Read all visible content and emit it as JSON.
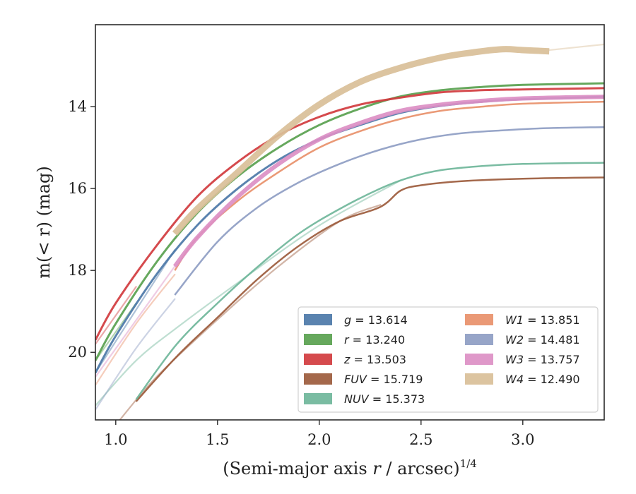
{
  "chart_data": {
    "type": "line",
    "xlabel": "(Semi-major axis ",
    "xlabel_var": "r",
    "xlabel_tail": " / arcsec)",
    "xlabel_sup": "1/4",
    "ylabel_pre": "m(< r) (mag)",
    "xlim": [
      0.9,
      3.4
    ],
    "ylim": [
      21.65,
      12.0
    ],
    "y_inverted": true,
    "xticks": [
      1.0,
      1.5,
      2.0,
      2.5,
      3.0
    ],
    "xtick_labels": [
      "1.0",
      "1.5",
      "2.0",
      "2.5",
      "3.0"
    ],
    "yticks": [
      14,
      16,
      18,
      20
    ],
    "ytick_labels": [
      "14",
      "16",
      "18",
      "20"
    ],
    "grid": false,
    "legend_placement": "lower-right",
    "series": [
      {
        "name": "g",
        "label": "g = 13.614",
        "color": "#4c78a8",
        "width": 3,
        "faint": [
          [
            0.9,
            20.5
          ],
          [
            1.29,
            17.5
          ]
        ],
        "points": [
          [
            0.9,
            20.5
          ],
          [
            1.0,
            19.6
          ],
          [
            1.2,
            18.1
          ],
          [
            1.4,
            16.9
          ],
          [
            1.6,
            16.0
          ],
          [
            1.8,
            15.3
          ],
          [
            2.0,
            14.8
          ],
          [
            2.2,
            14.45
          ],
          [
            2.4,
            14.15
          ],
          [
            2.6,
            13.98
          ],
          [
            2.8,
            13.88
          ],
          [
            3.0,
            13.82
          ],
          [
            3.4,
            13.76
          ]
        ]
      },
      {
        "name": "r",
        "label": "r = 13.240",
        "color": "#59a14f",
        "width": 3,
        "faint": [
          [
            0.9,
            20.2
          ],
          [
            1.1,
            18.8
          ]
        ],
        "points": [
          [
            0.9,
            20.2
          ],
          [
            1.0,
            19.3
          ],
          [
            1.2,
            17.8
          ],
          [
            1.4,
            16.6
          ],
          [
            1.6,
            15.7
          ],
          [
            1.8,
            15.0
          ],
          [
            2.0,
            14.45
          ],
          [
            2.2,
            14.05
          ],
          [
            2.4,
            13.75
          ],
          [
            2.6,
            13.6
          ],
          [
            2.8,
            13.52
          ],
          [
            3.0,
            13.47
          ],
          [
            3.4,
            13.43
          ]
        ]
      },
      {
        "name": "z",
        "label": "z = 13.503",
        "color": "#d13b3e",
        "width": 3,
        "faint": [
          [
            0.9,
            19.8
          ],
          [
            1.1,
            18.4
          ]
        ],
        "points": [
          [
            0.9,
            19.7
          ],
          [
            1.0,
            18.8
          ],
          [
            1.2,
            17.4
          ],
          [
            1.4,
            16.2
          ],
          [
            1.6,
            15.35
          ],
          [
            1.8,
            14.7
          ],
          [
            2.0,
            14.25
          ],
          [
            2.2,
            13.95
          ],
          [
            2.4,
            13.78
          ],
          [
            2.6,
            13.65
          ],
          [
            2.8,
            13.6
          ],
          [
            3.0,
            13.58
          ],
          [
            3.4,
            13.55
          ]
        ]
      },
      {
        "name": "FUV",
        "label": "FUV = 15.719",
        "color": "#9c5b3c",
        "width": 2.5,
        "faint": [
          [
            1.02,
            21.65
          ],
          [
            1.2,
            20.6
          ],
          [
            1.5,
            19.2
          ],
          [
            1.8,
            17.9
          ],
          [
            2.1,
            16.8
          ],
          [
            2.3,
            16.4
          ]
        ],
        "points": [
          [
            1.1,
            21.2
          ],
          [
            1.3,
            20.1
          ],
          [
            1.5,
            19.15
          ],
          [
            1.7,
            18.2
          ],
          [
            1.9,
            17.4
          ],
          [
            2.1,
            16.8
          ],
          [
            2.3,
            16.45
          ],
          [
            2.4,
            16.05
          ],
          [
            2.5,
            15.92
          ],
          [
            2.7,
            15.82
          ],
          [
            3.0,
            15.76
          ],
          [
            3.4,
            15.73
          ]
        ]
      },
      {
        "name": "NUV",
        "label": "NUV = 15.373",
        "color": "#6fb69a",
        "width": 2.5,
        "faint": [
          [
            0.9,
            21.3
          ],
          [
            1.1,
            20.2
          ],
          [
            1.3,
            19.4
          ],
          [
            1.6,
            18.3
          ],
          [
            2.0,
            16.9
          ],
          [
            2.4,
            15.8
          ]
        ],
        "points": [
          [
            1.1,
            21.15
          ],
          [
            1.3,
            19.8
          ],
          [
            1.5,
            18.8
          ],
          [
            1.7,
            17.9
          ],
          [
            1.9,
            17.1
          ],
          [
            2.1,
            16.5
          ],
          [
            2.3,
            16.0
          ],
          [
            2.45,
            15.72
          ],
          [
            2.6,
            15.55
          ],
          [
            2.8,
            15.45
          ],
          [
            3.0,
            15.4
          ],
          [
            3.4,
            15.37
          ]
        ]
      },
      {
        "name": "W1",
        "label": "W1 = 13.851",
        "color": "#e8906a",
        "width": 2.5,
        "faint": [
          [
            0.9,
            20.8
          ],
          [
            1.1,
            19.3
          ],
          [
            1.29,
            18.1
          ]
        ],
        "points": [
          [
            1.29,
            18.0
          ],
          [
            1.4,
            17.2
          ],
          [
            1.6,
            16.3
          ],
          [
            1.8,
            15.6
          ],
          [
            2.0,
            15.0
          ],
          [
            2.2,
            14.6
          ],
          [
            2.4,
            14.3
          ],
          [
            2.6,
            14.1
          ],
          [
            2.8,
            14.0
          ],
          [
            3.0,
            13.93
          ],
          [
            3.4,
            13.88
          ]
        ]
      },
      {
        "name": "W2",
        "label": "W2 = 14.481",
        "color": "#8e9dc3",
        "width": 2.5,
        "faint": [
          [
            0.9,
            21.4
          ],
          [
            1.1,
            19.9
          ],
          [
            1.29,
            18.7
          ]
        ],
        "points": [
          [
            1.29,
            18.6
          ],
          [
            1.5,
            17.3
          ],
          [
            1.7,
            16.45
          ],
          [
            1.9,
            15.85
          ],
          [
            2.1,
            15.4
          ],
          [
            2.3,
            15.05
          ],
          [
            2.5,
            14.8
          ],
          [
            2.7,
            14.65
          ],
          [
            2.9,
            14.58
          ],
          [
            3.1,
            14.53
          ],
          [
            3.4,
            14.5
          ]
        ]
      },
      {
        "name": "W3",
        "label": "W3 = 13.757",
        "color": "#dc8fc4",
        "width": 6,
        "faint": [
          [
            0.9,
            20.6
          ],
          [
            1.29,
            17.9
          ]
        ],
        "points": [
          [
            1.29,
            17.9
          ],
          [
            1.4,
            17.2
          ],
          [
            1.6,
            16.2
          ],
          [
            1.8,
            15.4
          ],
          [
            2.0,
            14.8
          ],
          [
            2.2,
            14.4
          ],
          [
            2.4,
            14.1
          ],
          [
            2.6,
            13.95
          ],
          [
            2.8,
            13.86
          ],
          [
            3.0,
            13.8
          ],
          [
            3.4,
            13.76
          ]
        ]
      },
      {
        "name": "W4",
        "label": "W4 = 12.490",
        "color": "#d9bf98",
        "width": 9,
        "faint": [
          [
            3.13,
            12.62
          ],
          [
            3.4,
            12.48
          ]
        ],
        "points": [
          [
            1.29,
            17.1
          ],
          [
            1.4,
            16.5
          ],
          [
            1.6,
            15.6
          ],
          [
            1.8,
            14.7
          ],
          [
            2.0,
            13.95
          ],
          [
            2.2,
            13.4
          ],
          [
            2.4,
            13.05
          ],
          [
            2.6,
            12.8
          ],
          [
            2.75,
            12.68
          ],
          [
            2.9,
            12.6
          ],
          [
            3.0,
            12.62
          ],
          [
            3.13,
            12.65
          ]
        ]
      }
    ]
  }
}
